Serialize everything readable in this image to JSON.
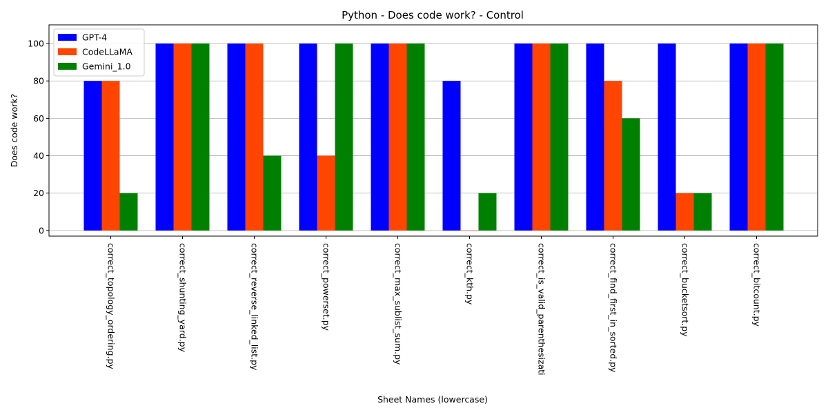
{
  "chart_data": {
    "type": "bar",
    "title": "Python - Does code work? - Control",
    "xlabel": "Sheet Names (lowercase)",
    "ylabel": "Does code work?",
    "ylim": [
      -3,
      110
    ],
    "yticks": [
      0,
      20,
      40,
      60,
      80,
      100
    ],
    "grid": "y",
    "legend_position": "top-left",
    "categories": [
      "correct_topology_ordering.py",
      "correct_shunting_yard.py",
      "correct_reverse_linked_list.py",
      "correct_powerset.py",
      "correct_max_sublist_sum.py",
      "correct_kth.py",
      "correct_is_valid_parenthesizati",
      "correct_find_first_in_sorted.py",
      "correct_bucketsort.py",
      "correct_bitcount.py"
    ],
    "series": [
      {
        "name": "GPT-4",
        "color": "#0000ff",
        "values": [
          80,
          100,
          100,
          100,
          100,
          80,
          100,
          100,
          100,
          100
        ]
      },
      {
        "name": "CodeLLaMA",
        "color": "#ff4500",
        "values": [
          80,
          100,
          100,
          40,
          100,
          0,
          100,
          80,
          20,
          100
        ]
      },
      {
        "name": "Gemini_1.0",
        "color": "#008000",
        "values": [
          20,
          100,
          40,
          100,
          100,
          20,
          100,
          60,
          20,
          100
        ]
      }
    ]
  }
}
